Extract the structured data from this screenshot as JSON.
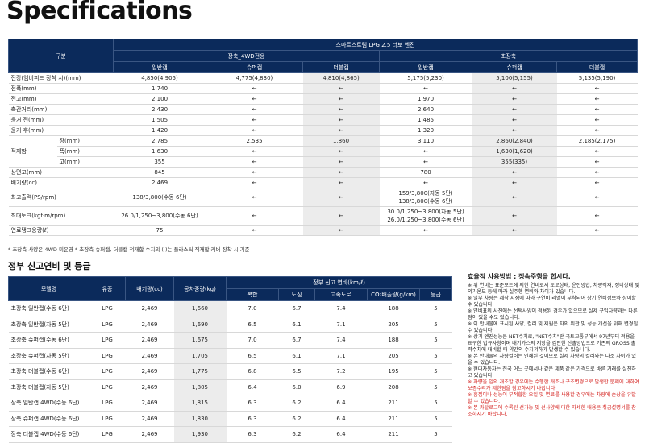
{
  "header": {
    "title": "Specifications"
  },
  "spec_table": {
    "corner": "구분",
    "engine": "스마트스트림 LPG 2.5 터보 엔진",
    "groups": [
      "장축_4WD전용",
      "초장축"
    ],
    "cab_types": [
      "일반캡",
      "슈퍼캡",
      "더블캡",
      "일반캡",
      "슈퍼캡",
      "더블캡"
    ],
    "rows": [
      {
        "label": "전장(엠비피드 장착 시)(mm)",
        "values": [
          "4,850(4,905)",
          "4,775(4,830)",
          "4,810(4,865)",
          "5,175(5,230)",
          "5,100(5,155)",
          "5,135(5,190)"
        ]
      },
      {
        "label": "전폭(mm)",
        "values": [
          "1,740",
          "←",
          "←",
          "←",
          "←",
          "←"
        ]
      },
      {
        "label": "전고(mm)",
        "values": [
          "2,100",
          "←",
          "←",
          "1,970",
          "←",
          "←"
        ]
      },
      {
        "label": "축간거리(mm)",
        "values": [
          "2,430",
          "←",
          "←",
          "2,640",
          "←",
          "←"
        ]
      },
      {
        "label": "윤거 전(mm)",
        "values": [
          "1,505",
          "←",
          "←",
          "1,485",
          "←",
          "←"
        ]
      },
      {
        "label": "윤거 후(mm)",
        "values": [
          "1,420",
          "←",
          "←",
          "1,320",
          "←",
          "←"
        ]
      },
      {
        "label": "적재함",
        "subrows": [
          {
            "label": "장(mm)",
            "values": [
              "2,785",
              "2,535",
              "1,860",
              "3,110",
              "2,860(2,840)",
              "2,185(2,175)"
            ]
          },
          {
            "label": "폭(mm)",
            "values": [
              "1,630",
              "←",
              "←",
              "←",
              "1,630(1,620)",
              "←"
            ]
          },
          {
            "label": "고(mm)",
            "values": [
              "355",
              "←",
              "←",
              "←",
              "355(335)",
              "←"
            ]
          }
        ]
      },
      {
        "label": "상면고(mm)",
        "values": [
          "845",
          "←",
          "←",
          "780",
          "←",
          "←"
        ]
      },
      {
        "label": "배기량(cc)",
        "values": [
          "2,469",
          "←",
          "←",
          "←",
          "←",
          "←"
        ]
      },
      {
        "label": "최고출력(PS/rpm)",
        "values": [
          "138/3,800(수동 6단)",
          "←",
          "←",
          [
            "159/3,800(자동 5단)",
            "138/3,800(수동 6단)"
          ],
          "←",
          "←"
        ]
      },
      {
        "label": "최대토크(kgf·m/rpm)",
        "values": [
          "26.0/1,250~3,800(수동 6단)",
          "←",
          "←",
          [
            "30.0/1,250~3,800(자동 5단)",
            "26.0/1,250~3,800(수동 6단)"
          ],
          "←",
          "←"
        ]
      },
      {
        "label": "연료탱크용량(ℓ)",
        "values": [
          "75",
          "←",
          "←",
          "←",
          "←",
          "←"
        ]
      }
    ],
    "footnote": "* 초장축 사양은 4WD 미운영  * 초장축 슈퍼캡, 더블캡 적재함 수치의 ( )는 플라스틱 적재함 커버 장착 시 기준"
  },
  "fuel_section": {
    "title": "정부 신고연비 및 등급",
    "columns": [
      "모델명",
      "유종",
      "배기량(cc)",
      "공차중량(kg)"
    ],
    "efficiency_group": "정부 신고 연비(km/ℓ)",
    "efficiency_columns": [
      "복합",
      "도심",
      "고속도로",
      "CO₂배출량(g/km)",
      "등급"
    ],
    "rows": [
      [
        "초장축 일반캡(수동 6단)",
        "LPG",
        "2,469",
        "1,660",
        "7.0",
        "6.7",
        "7.4",
        "188",
        "5"
      ],
      [
        "초장축 일반캡(자동 5단)",
        "LPG",
        "2,469",
        "1,690",
        "6.5",
        "6.1",
        "7.1",
        "205",
        "5"
      ],
      [
        "초장축 슈퍼캡(수동 6단)",
        "LPG",
        "2,469",
        "1,675",
        "7.0",
        "6.7",
        "7.4",
        "188",
        "5"
      ],
      [
        "초장축 슈퍼캡(자동 5단)",
        "LPG",
        "2,469",
        "1,705",
        "6.5",
        "6.1",
        "7.1",
        "205",
        "5"
      ],
      [
        "초장축 더블캡(수동 6단)",
        "LPG",
        "2,469",
        "1,775",
        "6.8",
        "6.5",
        "7.2",
        "195",
        "5"
      ],
      [
        "초장축 더블캡(자동 5단)",
        "LPG",
        "2,469",
        "1,805",
        "6.4",
        "6.0",
        "6.9",
        "208",
        "5"
      ],
      [
        "장축 일반캡 4WD(수동 6단)",
        "LPG",
        "2,469",
        "1,815",
        "6.3",
        "6.2",
        "6.4",
        "211",
        "5"
      ],
      [
        "장축 슈퍼캡 4WD(수동 6단)",
        "LPG",
        "2,469",
        "1,830",
        "6.3",
        "6.2",
        "6.4",
        "211",
        "5"
      ],
      [
        "장축 더블캡 4WD(수동 6단)",
        "LPG",
        "2,469",
        "1,930",
        "6.3",
        "6.2",
        "6.4",
        "211",
        "5"
      ]
    ]
  },
  "notes": {
    "title": "효율적 사용방법 : 정속주행을 합시다.",
    "items": [
      "※ 위 연비는 표준모드에 의한 연비로서 도로상태, 운전방법, 차량적재, 정비상태 및 외기온도 등에 따라 실주행 연비와 차이가 있습니다.",
      "※ 일부 차량은 제작 시점에 따라 구연비 라벨이 부착되어 상기 연비정보와 상이할 수 있습니다.",
      "※ 연비표의 사진에는 선택사양이 적용된 경우가 있으므로 실제 구입차량과는 다른 점이 있을 수도 있습니다.",
      "※ 이 안내물에 표시된 사양, 컬러 및 제원은 차의 외관 및 성능 개선을 위해 변경될 수 있습니다.",
      "※ 상기 엔진성능은 NET수치로, \"NET수치\"란 국토교통부에서 97년부터 적용을 요구한 법규사항이며 배기가스의 저항을 감안한 산출방법으로 기존의 GROSS 출력수치에 대비할 때 약간의 수치저하가 발생할 수 있습니다.",
      "※ 본 안내물의 차량컬러는 인쇄된 것이므로 실제 차량의 컬러와는 다소 차이가 있을 수 있습니다.",
      "※ 현대자동차는 전국 어느 곳에서나 같은 제품 같은 가격으로 바른 거래를 실천하고 있습니다."
    ],
    "warnings": [
      "※ 차량을 임의 개조할 경우에는 수행한 개조나 구조변경으로 발생한 문제에 대하여 보증수리가 제한됨을 참고하시기 바랍니다.",
      "※ 흠집이나 성능이 부적합한 오일 및 연료를 사용할 경우에는 차량에 손상을 유발할 수 있습니다.",
      "※ 본 카탈로그에 수록된 선가능 및 선사양에 대한 자세한 내용은 취급설명서를 참조하시기 바랍니다."
    ]
  }
}
